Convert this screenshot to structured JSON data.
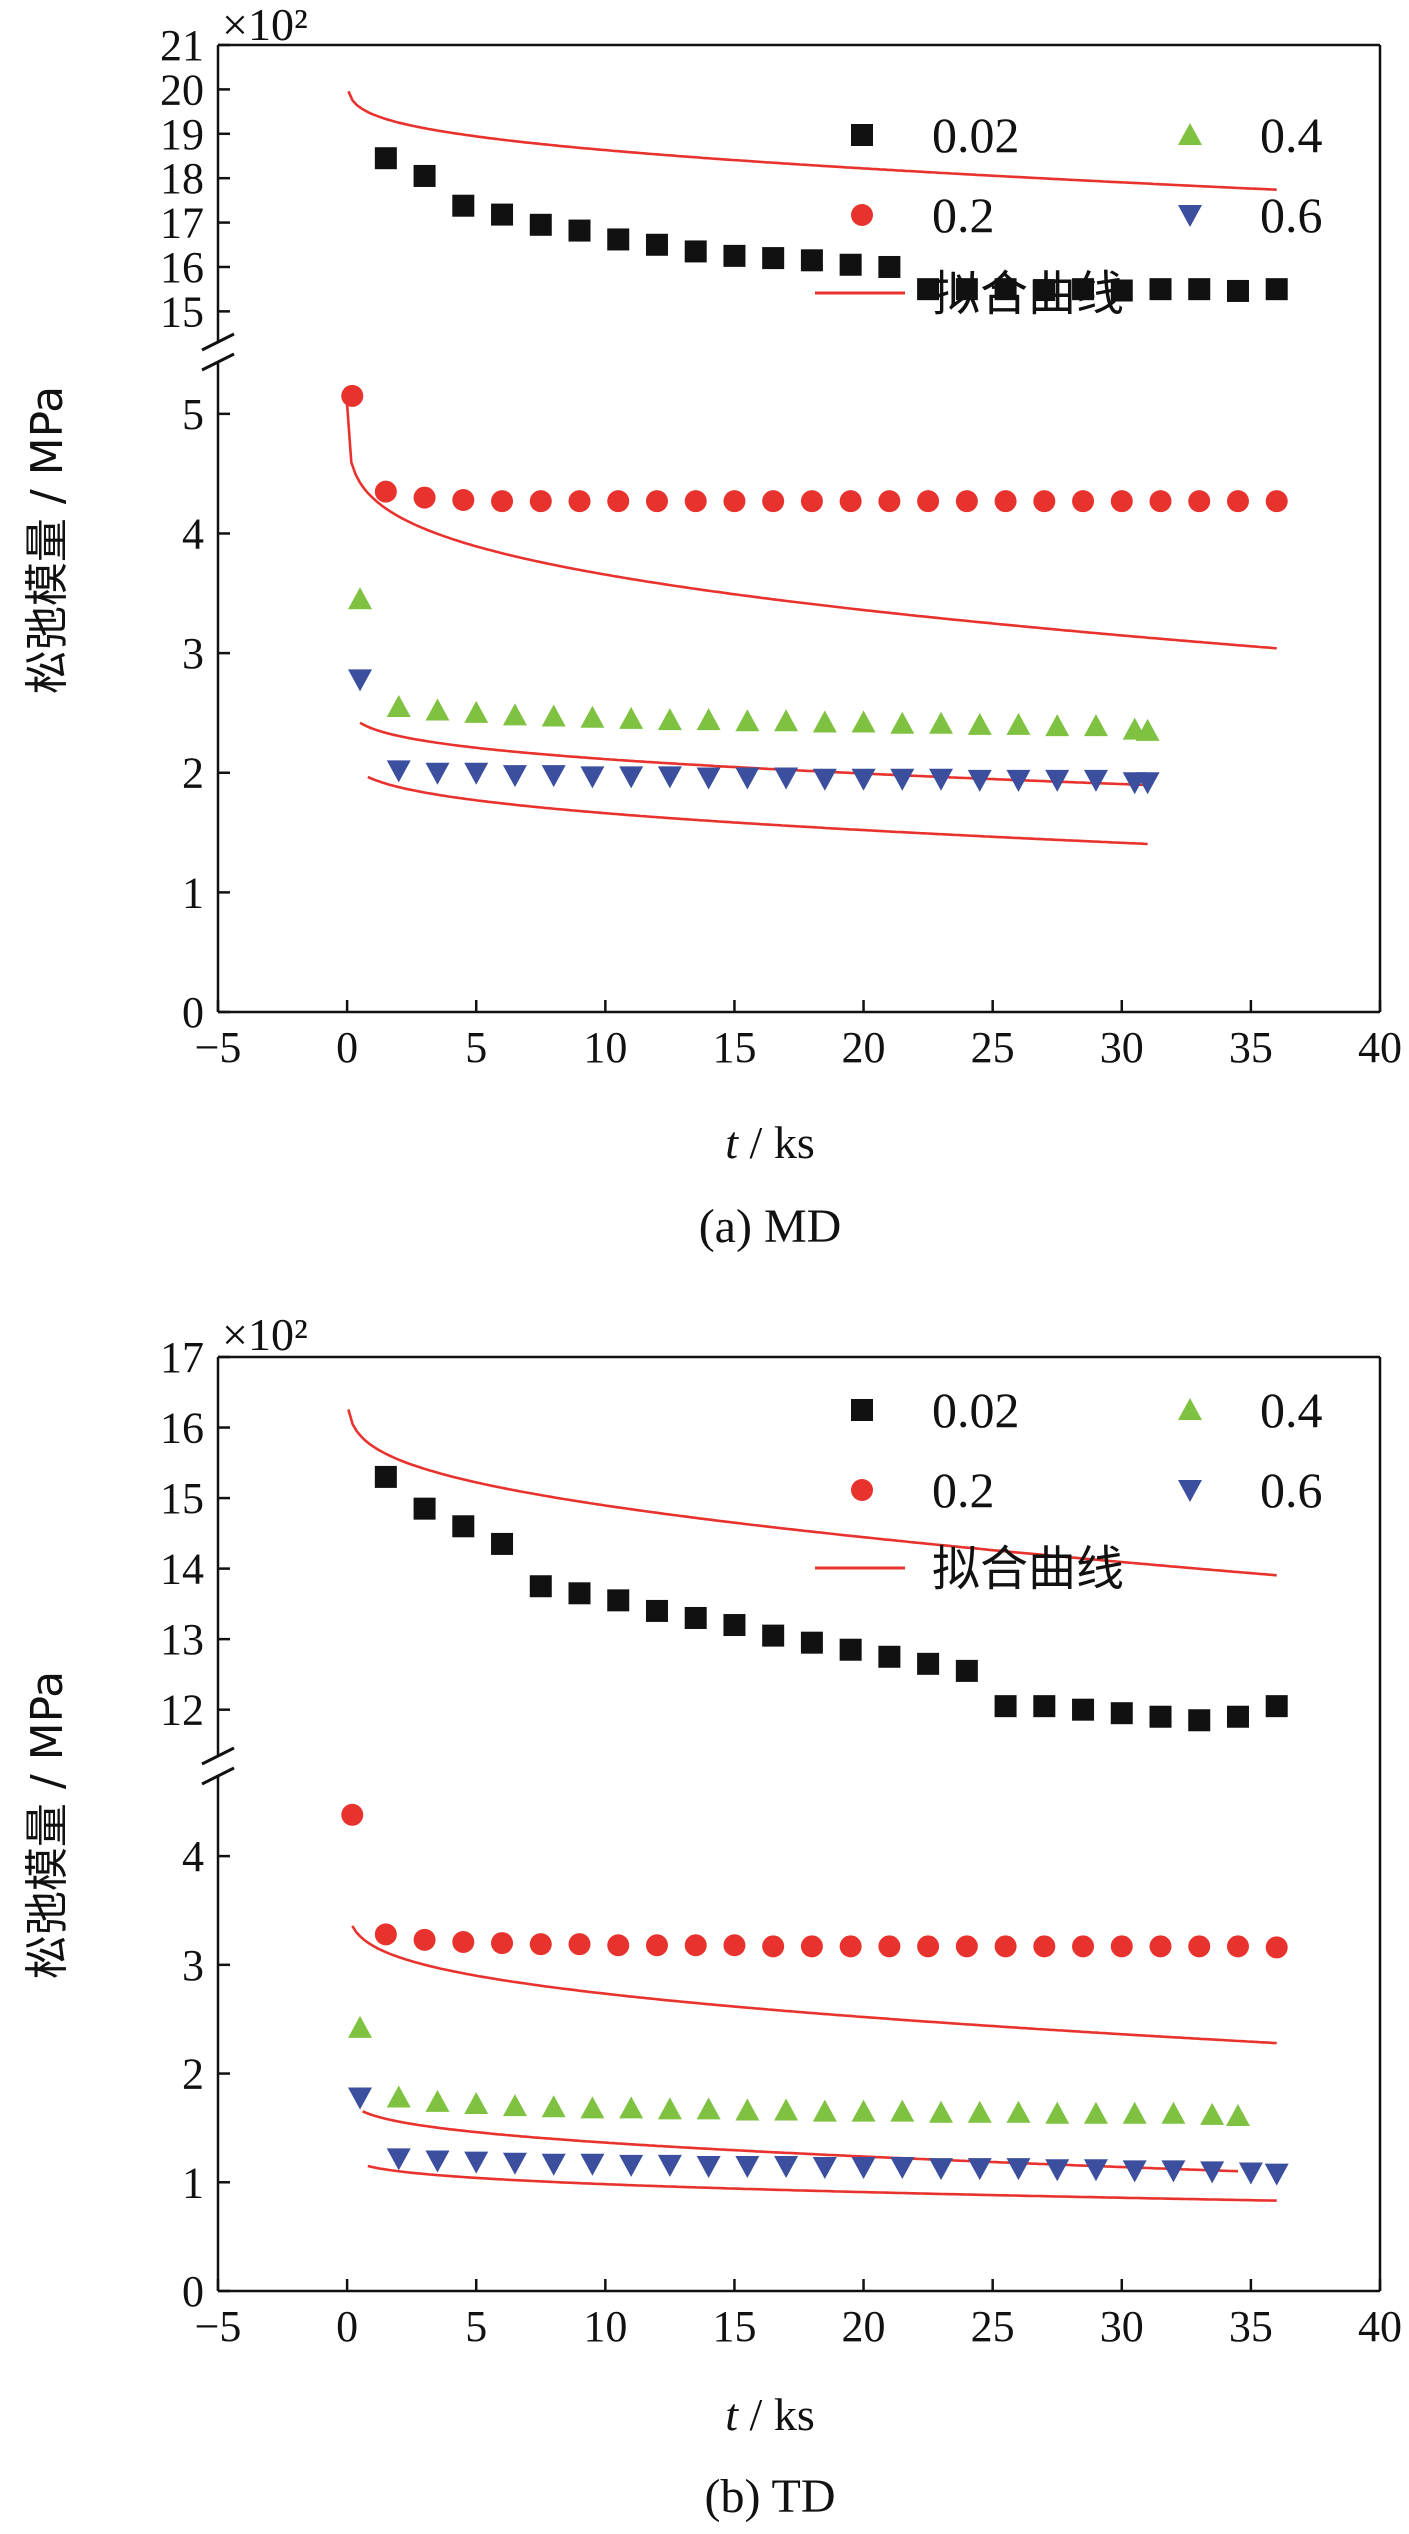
{
  "chart_data": [
    {
      "type": "scatter",
      "caption": "(a)  MD",
      "multiplier": "×10²",
      "ylabel": "松弛模量 / MPa",
      "xlabel_italic": "t",
      "xlabel_rest": " / ks",
      "xlim": [
        -5,
        40
      ],
      "xticks": [
        -5,
        0,
        5,
        10,
        15,
        20,
        25,
        30,
        35,
        40
      ],
      "xtick_labels": [
        "−5",
        "0",
        "5",
        "10",
        "15",
        "20",
        "25",
        "30",
        "35",
        "40"
      ],
      "yaxis_break": true,
      "lower_ylim": [
        0,
        5.4
      ],
      "lower_yticks": [
        0,
        1,
        2,
        3,
        4,
        5
      ],
      "upper_ylim": [
        14.4,
        21
      ],
      "upper_yticks": [
        15,
        16,
        17,
        18,
        19,
        20,
        21
      ],
      "legend": {
        "placement": "top-right",
        "entries": [
          {
            "label": "0.02",
            "marker": "square"
          },
          {
            "label": "0.4",
            "marker": "triangle-up"
          },
          {
            "label": "0.2",
            "marker": "circle"
          },
          {
            "label": "0.6",
            "marker": "triangle-down"
          },
          {
            "label": "拟合曲线",
            "marker": "line"
          }
        ]
      },
      "series": [
        {
          "name": "0.02",
          "marker": "square",
          "color": "#111111",
          "x": [
            1.5,
            3,
            4.5,
            6,
            7.5,
            9,
            10.5,
            12,
            13.5,
            15,
            16.5,
            18,
            19.5,
            21,
            22.5,
            24,
            25.5,
            27,
            28.5,
            30,
            31.5,
            33,
            34.5,
            36
          ],
          "y": [
            18.45,
            18.05,
            17.38,
            17.18,
            16.95,
            16.82,
            16.62,
            16.5,
            16.35,
            16.25,
            16.2,
            16.15,
            16.05,
            16.0,
            15.5,
            15.5,
            15.5,
            15.48,
            15.5,
            15.47,
            15.5,
            15.5,
            15.46,
            15.5
          ],
          "fit": {
            "a": 20.5,
            "b": 1.05,
            "c": 0.5,
            "xstart": 0.05,
            "xend": 36
          }
        },
        {
          "name": "0.2",
          "marker": "circle",
          "color": "#e8322d",
          "x": [
            0.2,
            1.5,
            3,
            4.5,
            6,
            7.5,
            9,
            10.5,
            12,
            13.5,
            15,
            16.5,
            18,
            19.5,
            21,
            22.5,
            24,
            25.5,
            27,
            28.5,
            30,
            31.5,
            33,
            34.5,
            36
          ],
          "y": [
            5.15,
            4.35,
            4.3,
            4.28,
            4.27,
            4.27,
            4.27,
            4.27,
            4.27,
            4.27,
            4.27,
            4.27,
            4.27,
            4.27,
            4.27,
            4.27,
            4.27,
            4.27,
            4.27,
            4.27,
            4.27,
            4.27,
            4.27,
            4.27,
            4.27
          ],
          "fit": {
            "a": 5.2,
            "b": 0.9,
            "c": 0.2,
            "xstart": 0.0,
            "xend": 36
          }
        },
        {
          "name": "0.4",
          "marker": "triangle-up",
          "color": "#7fc241",
          "x": [
            0.5,
            2,
            3.5,
            5,
            6.5,
            8,
            9.5,
            11,
            12.5,
            14,
            15.5,
            17,
            18.5,
            20,
            21.5,
            23,
            24.5,
            26,
            27.5,
            29,
            30.5,
            31
          ],
          "y": [
            3.45,
            2.55,
            2.52,
            2.5,
            2.48,
            2.47,
            2.46,
            2.45,
            2.44,
            2.44,
            2.43,
            2.43,
            2.42,
            2.42,
            2.41,
            2.41,
            2.4,
            2.4,
            2.39,
            2.39,
            2.36,
            2.35
          ],
          "fit": {
            "a": 2.72,
            "b": 0.35,
            "c": 0.1,
            "xstart": 0.5,
            "xend": 31
          }
        },
        {
          "name": "0.6",
          "marker": "triangle-down",
          "color": "#3c4f9e",
          "x": [
            0.5,
            2,
            3.5,
            5,
            6.5,
            8,
            9.5,
            11,
            12.5,
            14,
            15.5,
            17,
            18.5,
            20,
            21.5,
            23,
            24.5,
            26,
            27.5,
            29,
            30.5,
            31
          ],
          "y": [
            2.78,
            2.02,
            2.0,
            2.0,
            1.98,
            1.98,
            1.97,
            1.97,
            1.97,
            1.96,
            1.96,
            1.96,
            1.95,
            1.95,
            1.95,
            1.95,
            1.94,
            1.94,
            1.94,
            1.94,
            1.92,
            1.92
          ],
          "fit": {
            "a": 2.33,
            "b": 0.38,
            "c": 0.15,
            "xstart": 0.8,
            "xend": 31
          }
        }
      ]
    },
    {
      "type": "scatter",
      "caption": "(b)  TD",
      "multiplier": "×10²",
      "ylabel": "松弛模量 / MPa",
      "xlabel_italic": "t",
      "xlabel_rest": " / ks",
      "xlim": [
        -5,
        40
      ],
      "xticks": [
        -5,
        0,
        5,
        10,
        15,
        20,
        25,
        30,
        35,
        40
      ],
      "xtick_labels": [
        "−5",
        "0",
        "5",
        "10",
        "15",
        "20",
        "25",
        "30",
        "35",
        "40"
      ],
      "yaxis_break": true,
      "lower_ylim": [
        0,
        4.7
      ],
      "lower_yticks": [
        0,
        1,
        2,
        3,
        4
      ],
      "upper_ylim": [
        11.4,
        17
      ],
      "upper_yticks": [
        12,
        13,
        14,
        15,
        16,
        17
      ],
      "legend": {
        "placement": "top-right",
        "entries": [
          {
            "label": "0.02",
            "marker": "square"
          },
          {
            "label": "0.4",
            "marker": "triangle-up"
          },
          {
            "label": "0.2",
            "marker": "circle"
          },
          {
            "label": "0.6",
            "marker": "triangle-down"
          },
          {
            "label": "拟合曲线",
            "marker": "line"
          }
        ]
      },
      "series": [
        {
          "name": "0.02",
          "marker": "square",
          "color": "#111111",
          "x": [
            1.5,
            3,
            4.5,
            6,
            7.5,
            9,
            10.5,
            12,
            13.5,
            15,
            16.5,
            18,
            19.5,
            21,
            22.5,
            24,
            25.5,
            27,
            28.5,
            30,
            31.5,
            33,
            34.5,
            36
          ],
          "y": [
            15.3,
            14.85,
            14.6,
            14.35,
            13.75,
            13.65,
            13.55,
            13.4,
            13.3,
            13.2,
            13.05,
            12.95,
            12.85,
            12.75,
            12.65,
            12.55,
            12.05,
            12.05,
            12.0,
            11.95,
            11.9,
            11.85,
            11.9,
            12.05
          ],
          "fit": {
            "a": 16.8,
            "b": 1.05,
            "c": 0.65,
            "xstart": 0.05,
            "xend": 36
          }
        },
        {
          "name": "0.2",
          "marker": "circle",
          "color": "#e8322d",
          "x": [
            0.2,
            1.5,
            3,
            4.5,
            6,
            7.5,
            9,
            10.5,
            12,
            13.5,
            15,
            16.5,
            18,
            19.5,
            21,
            22.5,
            24,
            25.5,
            27,
            28.5,
            30,
            31.5,
            33,
            34.5,
            36
          ],
          "y": [
            4.38,
            3.28,
            3.23,
            3.21,
            3.2,
            3.19,
            3.19,
            3.18,
            3.18,
            3.18,
            3.18,
            3.17,
            3.17,
            3.17,
            3.17,
            3.17,
            3.17,
            3.17,
            3.17,
            3.17,
            3.17,
            3.17,
            3.17,
            3.17,
            3.16
          ],
          "fit": {
            "a": 3.78,
            "b": 0.6,
            "c": 0.2,
            "xstart": 0.2,
            "xend": 36
          }
        },
        {
          "name": "0.4",
          "marker": "triangle-up",
          "color": "#7fc241",
          "x": [
            0.5,
            2,
            3.5,
            5,
            6.5,
            8,
            9.5,
            11,
            12.5,
            14,
            15.5,
            17,
            18.5,
            20,
            21.5,
            23,
            24.5,
            26,
            27.5,
            29,
            30.5,
            32,
            33.5,
            34.5
          ],
          "y": [
            2.42,
            1.78,
            1.74,
            1.72,
            1.7,
            1.69,
            1.68,
            1.68,
            1.67,
            1.67,
            1.66,
            1.66,
            1.65,
            1.65,
            1.65,
            1.64,
            1.64,
            1.64,
            1.63,
            1.63,
            1.63,
            1.63,
            1.62,
            1.61
          ],
          "fit": {
            "a": 1.95,
            "b": 0.33,
            "c": 0.15,
            "xstart": 0.6,
            "xend": 34.5
          }
        },
        {
          "name": "0.6",
          "marker": "triangle-down",
          "color": "#3c4f9e",
          "x": [
            0.5,
            2,
            3.5,
            5,
            6.5,
            8,
            9.5,
            11,
            12.5,
            14,
            15.5,
            17,
            18.5,
            20,
            21.5,
            23,
            24.5,
            26,
            27.5,
            29,
            30.5,
            32,
            33.5,
            35,
            36
          ],
          "y": [
            1.78,
            1.22,
            1.2,
            1.19,
            1.18,
            1.17,
            1.17,
            1.16,
            1.16,
            1.15,
            1.15,
            1.15,
            1.14,
            1.14,
            1.14,
            1.13,
            1.13,
            1.13,
            1.12,
            1.12,
            1.11,
            1.11,
            1.1,
            1.09,
            1.08
          ],
          "fit": {
            "a": 1.36,
            "b": 0.22,
            "c": 0.05,
            "xstart": 0.8,
            "xend": 36
          }
        }
      ]
    }
  ]
}
